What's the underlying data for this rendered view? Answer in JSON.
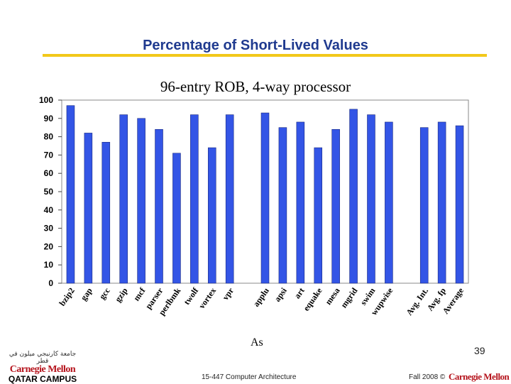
{
  "slide": {
    "title": "Percentage of Short-Lived Values",
    "subtitle": "96-entry ROB, 4-way processor",
    "note": "As",
    "page_number": "39",
    "footer_course": "15-447 Computer Architecture",
    "footer_term": "Fall 2008 ©",
    "footer_brand": "Carnegie Mellon",
    "logo_arabic": "جامعة كارنيجي ميلون في قطر",
    "logo_name": "Carnegie Mellon",
    "logo_campus": "QATAR CAMPUS"
  },
  "colors": {
    "bar": "#3355e6",
    "accent": "#f2c81a",
    "title": "#1f3a8f",
    "brand": "#b5121b"
  },
  "chart_data": {
    "type": "bar",
    "title": "",
    "xlabel": "",
    "ylabel": "",
    "ylim": [
      0,
      100
    ],
    "yticks": [
      0,
      10,
      20,
      30,
      40,
      50,
      60,
      70,
      80,
      90,
      100
    ],
    "grid": false,
    "categories": [
      "bzip2",
      "gap",
      "gcc",
      "gzip",
      "mcf",
      "parser",
      "perlbmk",
      "twolf",
      "vortex",
      "vpr",
      "",
      "applu",
      "apsi",
      "art",
      "equake",
      "mesa",
      "mgrid",
      "swim",
      "wupwise",
      "",
      "Avg. Int.",
      "Avg. fp",
      "Average"
    ],
    "values": [
      97,
      82,
      77,
      92,
      90,
      84,
      71,
      92,
      74,
      92,
      null,
      93,
      85,
      88,
      74,
      84,
      95,
      92,
      88,
      null,
      85,
      88,
      86
    ]
  }
}
